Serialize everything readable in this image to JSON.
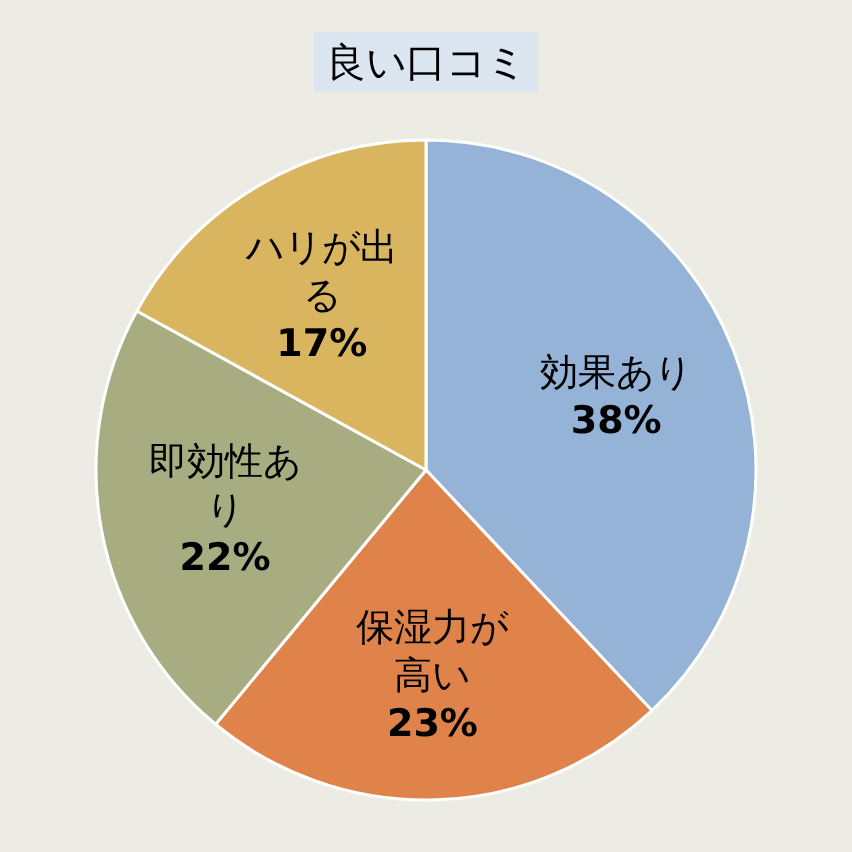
{
  "chart_data": {
    "type": "pie",
    "title": "良い口コミ",
    "categories": [
      "効果あり",
      "保湿力が高い",
      "即効性あり",
      "ハリが出る"
    ],
    "values": [
      38,
      23,
      22,
      17
    ],
    "colors": [
      "#95b3d7",
      "#e0834a",
      "#a7ad80",
      "#d9b560"
    ],
    "value_labels": [
      "38%",
      "23%",
      "22%",
      "17%"
    ]
  }
}
